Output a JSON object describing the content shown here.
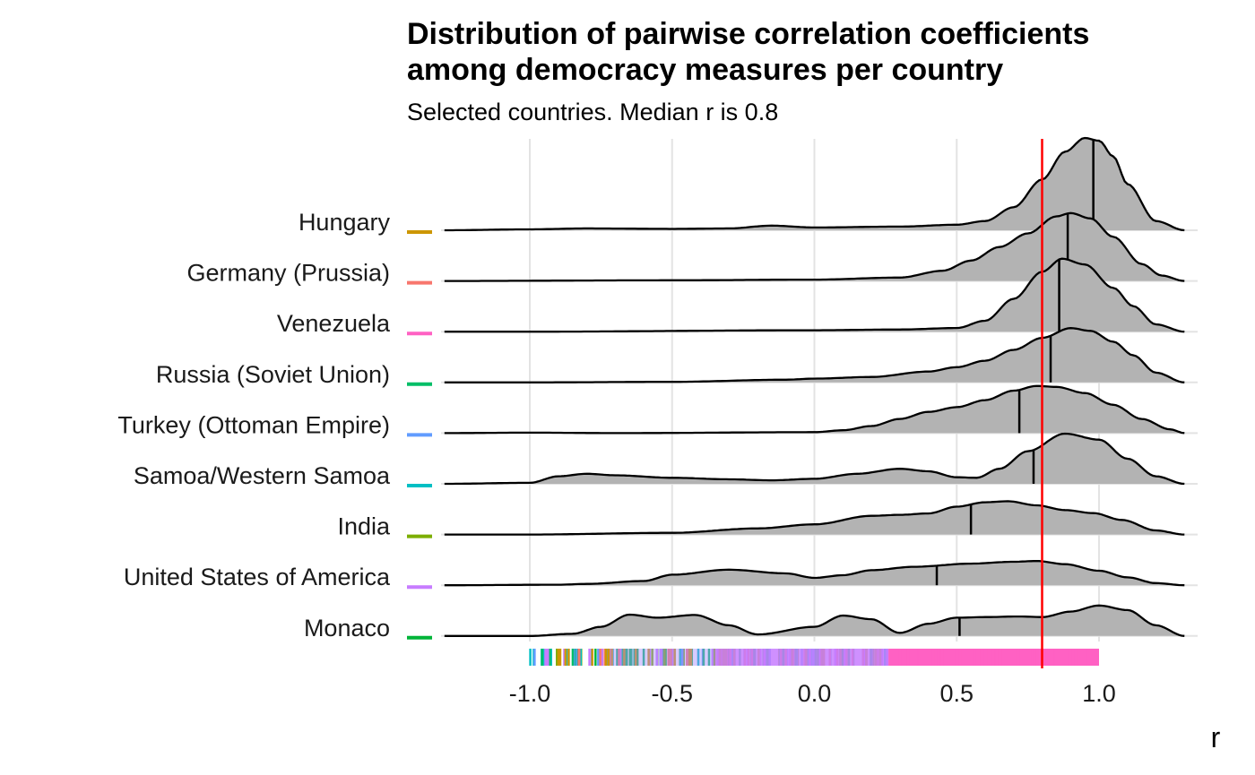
{
  "chart_data": {
    "type": "ridgeline density",
    "title_line1": "Distribution of pairwise correlation coefficients",
    "title_line2": "among democracy measures per country",
    "subtitle": "Selected countries. Median r is 0.8",
    "xlabel": "r",
    "xlim": [
      -1.3,
      1.3
    ],
    "x_ticks": [
      -1.0,
      -0.5,
      0.0,
      0.5,
      1.0
    ],
    "x_tick_labels": [
      "-1.0",
      "-0.5",
      "0.0",
      "0.5",
      "1.0"
    ],
    "reference_line": {
      "x": 0.8,
      "color": "#FF0000"
    },
    "fill_color": "#B3B3B3",
    "grid": true,
    "series": [
      {
        "name": "Hungary",
        "color": "#CD9600",
        "median": 0.98,
        "scale": 1.82,
        "density": [
          [
            -1.3,
            0.0
          ],
          [
            -1.0,
            0.01
          ],
          [
            -0.8,
            0.02
          ],
          [
            -0.5,
            0.015
          ],
          [
            -0.3,
            0.02
          ],
          [
            -0.15,
            0.05
          ],
          [
            0.0,
            0.03
          ],
          [
            0.3,
            0.04
          ],
          [
            0.5,
            0.06
          ],
          [
            0.6,
            0.1
          ],
          [
            0.7,
            0.25
          ],
          [
            0.8,
            0.55
          ],
          [
            0.88,
            0.85
          ],
          [
            0.95,
            1.0
          ],
          [
            1.0,
            0.97
          ],
          [
            1.05,
            0.8
          ],
          [
            1.1,
            0.5
          ],
          [
            1.2,
            0.1
          ],
          [
            1.3,
            0.0
          ]
        ]
      },
      {
        "name": "Germany (Prussia)",
        "color": "#F8766D",
        "median": 0.89,
        "scale": 1.34,
        "density": [
          [
            -1.3,
            0.0
          ],
          [
            -0.5,
            0.01
          ],
          [
            0.0,
            0.02
          ],
          [
            0.3,
            0.05
          ],
          [
            0.45,
            0.15
          ],
          [
            0.55,
            0.3
          ],
          [
            0.65,
            0.5
          ],
          [
            0.75,
            0.7
          ],
          [
            0.85,
            0.95
          ],
          [
            0.9,
            1.0
          ],
          [
            0.97,
            0.92
          ],
          [
            1.05,
            0.65
          ],
          [
            1.15,
            0.25
          ],
          [
            1.22,
            0.08
          ],
          [
            1.3,
            0.0
          ]
        ]
      },
      {
        "name": "Venezuela",
        "color": "#FF61C3",
        "median": 0.86,
        "scale": 1.44,
        "density": [
          [
            -1.3,
            0.0
          ],
          [
            -1.0,
            0.0
          ],
          [
            0.0,
            0.02
          ],
          [
            0.3,
            0.03
          ],
          [
            0.5,
            0.05
          ],
          [
            0.6,
            0.15
          ],
          [
            0.7,
            0.45
          ],
          [
            0.8,
            0.82
          ],
          [
            0.87,
            1.0
          ],
          [
            0.95,
            0.92
          ],
          [
            1.05,
            0.6
          ],
          [
            1.12,
            0.35
          ],
          [
            1.2,
            0.1
          ],
          [
            1.3,
            0.0
          ]
        ]
      },
      {
        "name": "Russia (Soviet Union)",
        "color": "#00BE67",
        "median": 0.83,
        "scale": 1.07,
        "density": [
          [
            -1.3,
            0.0
          ],
          [
            -1.0,
            0.0
          ],
          [
            -0.5,
            0.01
          ],
          [
            -0.1,
            0.05
          ],
          [
            0.0,
            0.07
          ],
          [
            0.2,
            0.1
          ],
          [
            0.4,
            0.2
          ],
          [
            0.5,
            0.28
          ],
          [
            0.6,
            0.4
          ],
          [
            0.7,
            0.6
          ],
          [
            0.8,
            0.82
          ],
          [
            0.9,
            1.0
          ],
          [
            0.97,
            0.95
          ],
          [
            1.05,
            0.75
          ],
          [
            1.12,
            0.5
          ],
          [
            1.2,
            0.18
          ],
          [
            1.3,
            0.0
          ]
        ]
      },
      {
        "name": "Turkey (Ottoman Empire)",
        "color": "#619CFF",
        "median": 0.72,
        "scale": 0.93,
        "density": [
          [
            -1.3,
            0.0
          ],
          [
            -1.0,
            0.01
          ],
          [
            -0.7,
            0.0
          ],
          [
            0.0,
            0.02
          ],
          [
            0.1,
            0.06
          ],
          [
            0.2,
            0.15
          ],
          [
            0.3,
            0.3
          ],
          [
            0.4,
            0.45
          ],
          [
            0.5,
            0.55
          ],
          [
            0.6,
            0.7
          ],
          [
            0.7,
            0.9
          ],
          [
            0.78,
            1.0
          ],
          [
            0.85,
            0.98
          ],
          [
            0.95,
            0.85
          ],
          [
            1.05,
            0.6
          ],
          [
            1.15,
            0.3
          ],
          [
            1.25,
            0.08
          ],
          [
            1.3,
            0.0
          ]
        ]
      },
      {
        "name": "Samoa/Western Samoa",
        "color": "#00BFC4",
        "median": 0.77,
        "scale": 0.99,
        "density": [
          [
            -1.3,
            0.0
          ],
          [
            -1.0,
            0.02
          ],
          [
            -0.9,
            0.15
          ],
          [
            -0.8,
            0.2
          ],
          [
            -0.7,
            0.17
          ],
          [
            -0.5,
            0.12
          ],
          [
            -0.3,
            0.09
          ],
          [
            -0.15,
            0.07
          ],
          [
            0.0,
            0.1
          ],
          [
            0.15,
            0.2
          ],
          [
            0.3,
            0.3
          ],
          [
            0.4,
            0.25
          ],
          [
            0.5,
            0.13
          ],
          [
            0.57,
            0.12
          ],
          [
            0.65,
            0.3
          ],
          [
            0.75,
            0.65
          ],
          [
            0.88,
            1.0
          ],
          [
            1.0,
            0.88
          ],
          [
            1.1,
            0.5
          ],
          [
            1.2,
            0.15
          ],
          [
            1.3,
            0.0
          ]
        ]
      },
      {
        "name": "India",
        "color": "#7CAE00",
        "median": 0.55,
        "scale": 0.67,
        "density": [
          [
            -1.3,
            0.0
          ],
          [
            -1.0,
            0.0
          ],
          [
            -0.5,
            0.05
          ],
          [
            -0.2,
            0.18
          ],
          [
            0.0,
            0.3
          ],
          [
            0.2,
            0.55
          ],
          [
            0.3,
            0.58
          ],
          [
            0.4,
            0.62
          ],
          [
            0.5,
            0.82
          ],
          [
            0.6,
            0.95
          ],
          [
            0.68,
            0.98
          ],
          [
            0.78,
            0.86
          ],
          [
            0.88,
            0.72
          ],
          [
            0.98,
            0.63
          ],
          [
            1.08,
            0.43
          ],
          [
            1.2,
            0.12
          ],
          [
            1.3,
            0.0
          ]
        ]
      },
      {
        "name": "United States of America",
        "color": "#C77CFF",
        "median": 0.43,
        "scale": 0.52,
        "density": [
          [
            -1.3,
            0.0
          ],
          [
            -0.9,
            0.02
          ],
          [
            -0.8,
            0.05
          ],
          [
            -0.6,
            0.16
          ],
          [
            -0.5,
            0.4
          ],
          [
            -0.3,
            0.59
          ],
          [
            -0.1,
            0.45
          ],
          [
            0.0,
            0.28
          ],
          [
            0.1,
            0.38
          ],
          [
            0.2,
            0.57
          ],
          [
            0.35,
            0.7
          ],
          [
            0.55,
            0.82
          ],
          [
            0.7,
            0.89
          ],
          [
            0.78,
            0.92
          ],
          [
            0.88,
            0.8
          ],
          [
            1.0,
            0.55
          ],
          [
            1.1,
            0.3
          ],
          [
            1.2,
            0.08
          ],
          [
            1.3,
            0.0
          ]
        ]
      },
      {
        "name": "Monaco",
        "color": "#00B438",
        "median": 0.51,
        "scale": 0.6,
        "density": [
          [
            -1.3,
            0.0
          ],
          [
            -1.0,
            0.0
          ],
          [
            -0.85,
            0.07
          ],
          [
            -0.75,
            0.3
          ],
          [
            -0.65,
            0.7
          ],
          [
            -0.55,
            0.6
          ],
          [
            -0.42,
            0.69
          ],
          [
            -0.3,
            0.35
          ],
          [
            -0.2,
            0.05
          ],
          [
            0.0,
            0.3
          ],
          [
            0.1,
            0.67
          ],
          [
            0.2,
            0.55
          ],
          [
            0.3,
            0.1
          ],
          [
            0.4,
            0.4
          ],
          [
            0.5,
            0.6
          ],
          [
            0.6,
            0.62
          ],
          [
            0.72,
            0.64
          ],
          [
            0.8,
            0.62
          ],
          [
            0.9,
            0.8
          ],
          [
            1.0,
            1.0
          ],
          [
            1.1,
            0.85
          ],
          [
            1.2,
            0.35
          ],
          [
            1.3,
            0.0
          ]
        ]
      }
    ]
  }
}
